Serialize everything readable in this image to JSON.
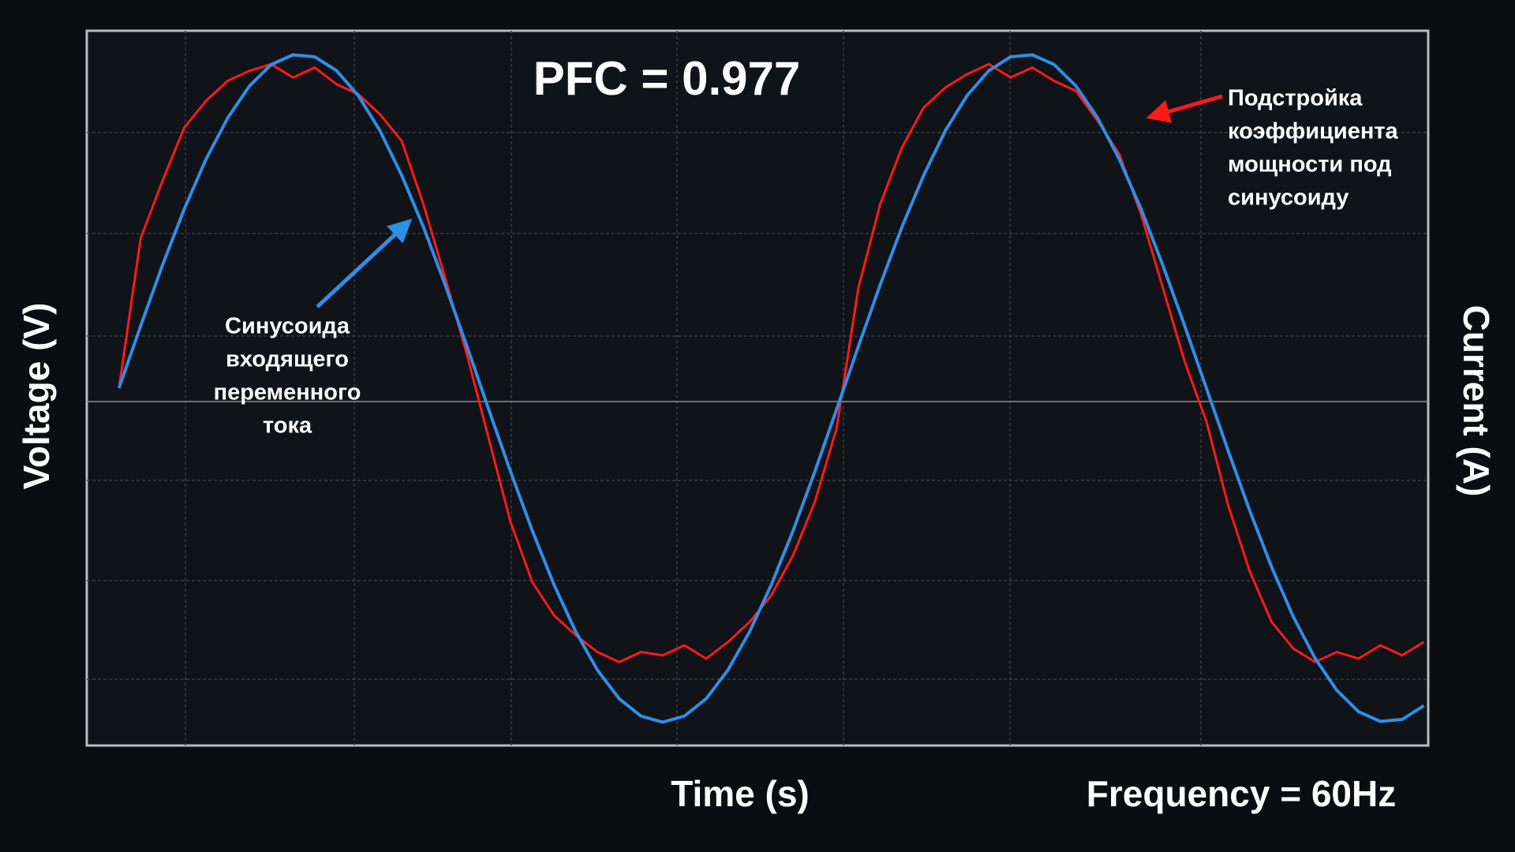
{
  "chart_data": {
    "type": "line",
    "title": "PFC = 0.977",
    "x_label": "Time (s)",
    "y_label": "Voltage (V)",
    "y2_label": "Current (A)",
    "frequency_label": "Frequency = 60Hz",
    "annotations": [
      {
        "lines": [
          "Синусоида",
          "входящего",
          "переменного",
          "тока"
        ],
        "color": "#2f8ee8"
      },
      {
        "lines": [
          "Подстройка",
          "коэффициента",
          "мощности под",
          "синусоиду"
        ],
        "color": "#ff1a1a"
      }
    ],
    "xlim": [
      -0.00074,
      0.0301
    ],
    "ylim": [
      -1.07,
      1.07
    ],
    "y2lim": [
      -1.07,
      1.07
    ],
    "x": [
      0,
      0.0005,
      0.001,
      0.0015,
      0.002,
      0.0025,
      0.003,
      0.0035,
      0.004,
      0.0045,
      0.005,
      0.0055,
      0.006,
      0.0065,
      0.007,
      0.0075,
      0.008,
      0.0085,
      0.009,
      0.0095,
      0.01,
      0.0105,
      0.011,
      0.0115,
      0.012,
      0.0125,
      0.013,
      0.0135,
      0.014,
      0.0145,
      0.015,
      0.0155,
      0.016,
      0.0165,
      0.017,
      0.0175,
      0.018,
      0.0185,
      0.019,
      0.0195,
      0.02,
      0.0205,
      0.021,
      0.0215,
      0.022,
      0.0225,
      0.023,
      0.0235,
      0.024,
      0.0245,
      0.025,
      0.0255,
      0.026,
      0.0265,
      0.027,
      0.0275,
      0.028,
      0.0285,
      0.029,
      0.0295,
      0.03
    ],
    "series": [
      {
        "color": "#2f8ee8",
        "values": [
          0,
          0.187,
          0.368,
          0.536,
          0.685,
          0.809,
          0.905,
          0.969,
          0.998,
          0.992,
          0.951,
          0.876,
          0.771,
          0.637,
          0.482,
          0.309,
          0.125,
          -0.063,
          -0.249,
          -0.426,
          -0.588,
          -0.729,
          -0.844,
          -0.93,
          -0.982,
          -1,
          -0.982,
          -0.93,
          -0.844,
          -0.729,
          -0.588,
          -0.426,
          -0.249,
          -0.063,
          0.125,
          0.309,
          0.482,
          0.637,
          0.771,
          0.876,
          0.951,
          0.992,
          0.998,
          0.969,
          0.905,
          0.809,
          0.685,
          0.536,
          0.368,
          0.187,
          0,
          -0.187,
          -0.368,
          -0.536,
          -0.685,
          -0.809,
          -0.905,
          -0.969,
          -0.998,
          -0.992,
          -0.951
        ]
      },
      {
        "color": "#ff1a1a",
        "axis": "y2",
        "values": [
          0,
          0.45,
          0.62,
          0.78,
          0.86,
          0.92,
          0.95,
          0.97,
          0.93,
          0.96,
          0.91,
          0.88,
          0.82,
          0.74,
          0.55,
          0.33,
          0.1,
          -0.15,
          -0.4,
          -0.58,
          -0.68,
          -0.74,
          -0.79,
          -0.82,
          -0.79,
          -0.8,
          -0.77,
          -0.81,
          -0.76,
          -0.7,
          -0.62,
          -0.5,
          -0.34,
          -0.12,
          0.3,
          0.55,
          0.72,
          0.84,
          0.9,
          0.94,
          0.97,
          0.93,
          0.96,
          0.92,
          0.89,
          0.8,
          0.7,
          0.52,
          0.3,
          0.08,
          -0.1,
          -0.35,
          -0.55,
          -0.7,
          -0.78,
          -0.82,
          -0.79,
          -0.81,
          -0.77,
          -0.8,
          -0.76
        ]
      }
    ]
  }
}
